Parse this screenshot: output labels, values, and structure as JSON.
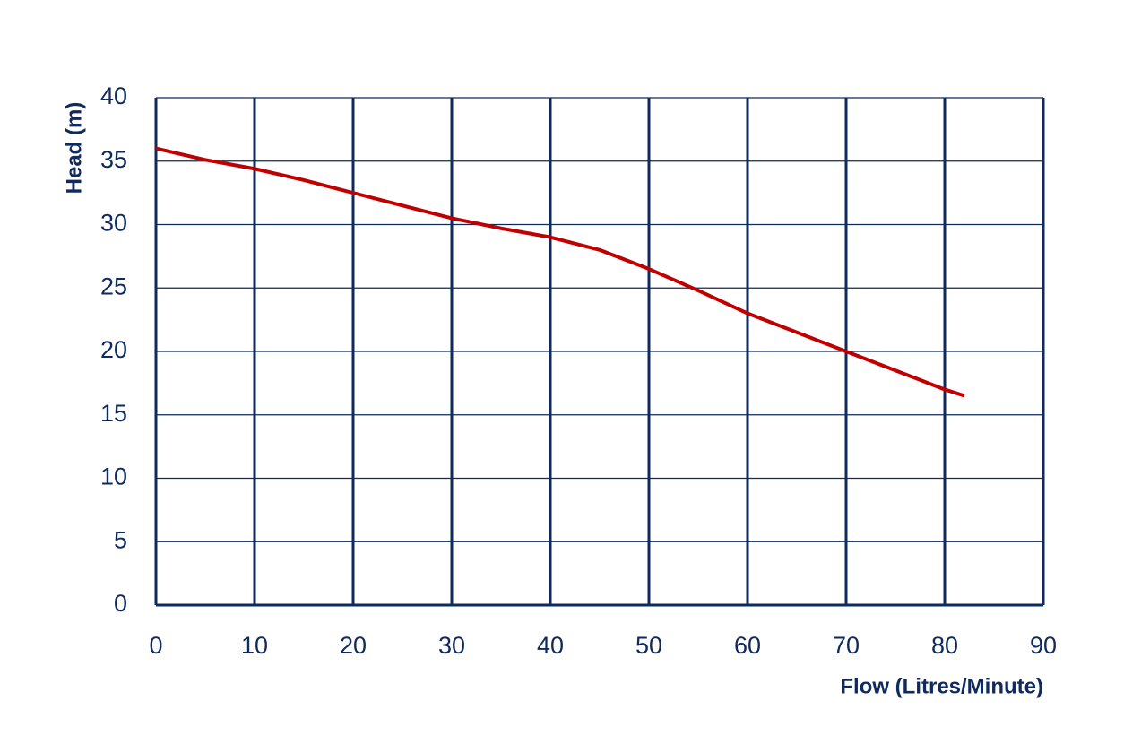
{
  "chart_data": {
    "type": "line",
    "x_label": "Flow (Litres/Minute)",
    "y_label": "Head (m)",
    "series": [
      {
        "name": "Head",
        "color": "#c00000",
        "x": [
          0,
          5,
          10,
          15,
          20,
          25,
          30,
          35,
          40,
          45,
          50,
          55,
          60,
          65,
          70,
          75,
          80,
          82
        ],
        "values": [
          36,
          35.1,
          34.4,
          33.5,
          32.5,
          31.5,
          30.5,
          29.7,
          29,
          28,
          26.5,
          24.8,
          23,
          21.5,
          20,
          18.5,
          17,
          16.5
        ]
      }
    ],
    "xlim": [
      0,
      90
    ],
    "xticks": [
      0,
      10,
      20,
      30,
      40,
      50,
      60,
      70,
      80,
      90
    ],
    "ylim": [
      0,
      40
    ],
    "yticks": [
      0,
      5,
      10,
      15,
      20,
      25,
      30,
      35,
      40
    ],
    "grid": true,
    "grid_color": "#0f2a5c"
  }
}
